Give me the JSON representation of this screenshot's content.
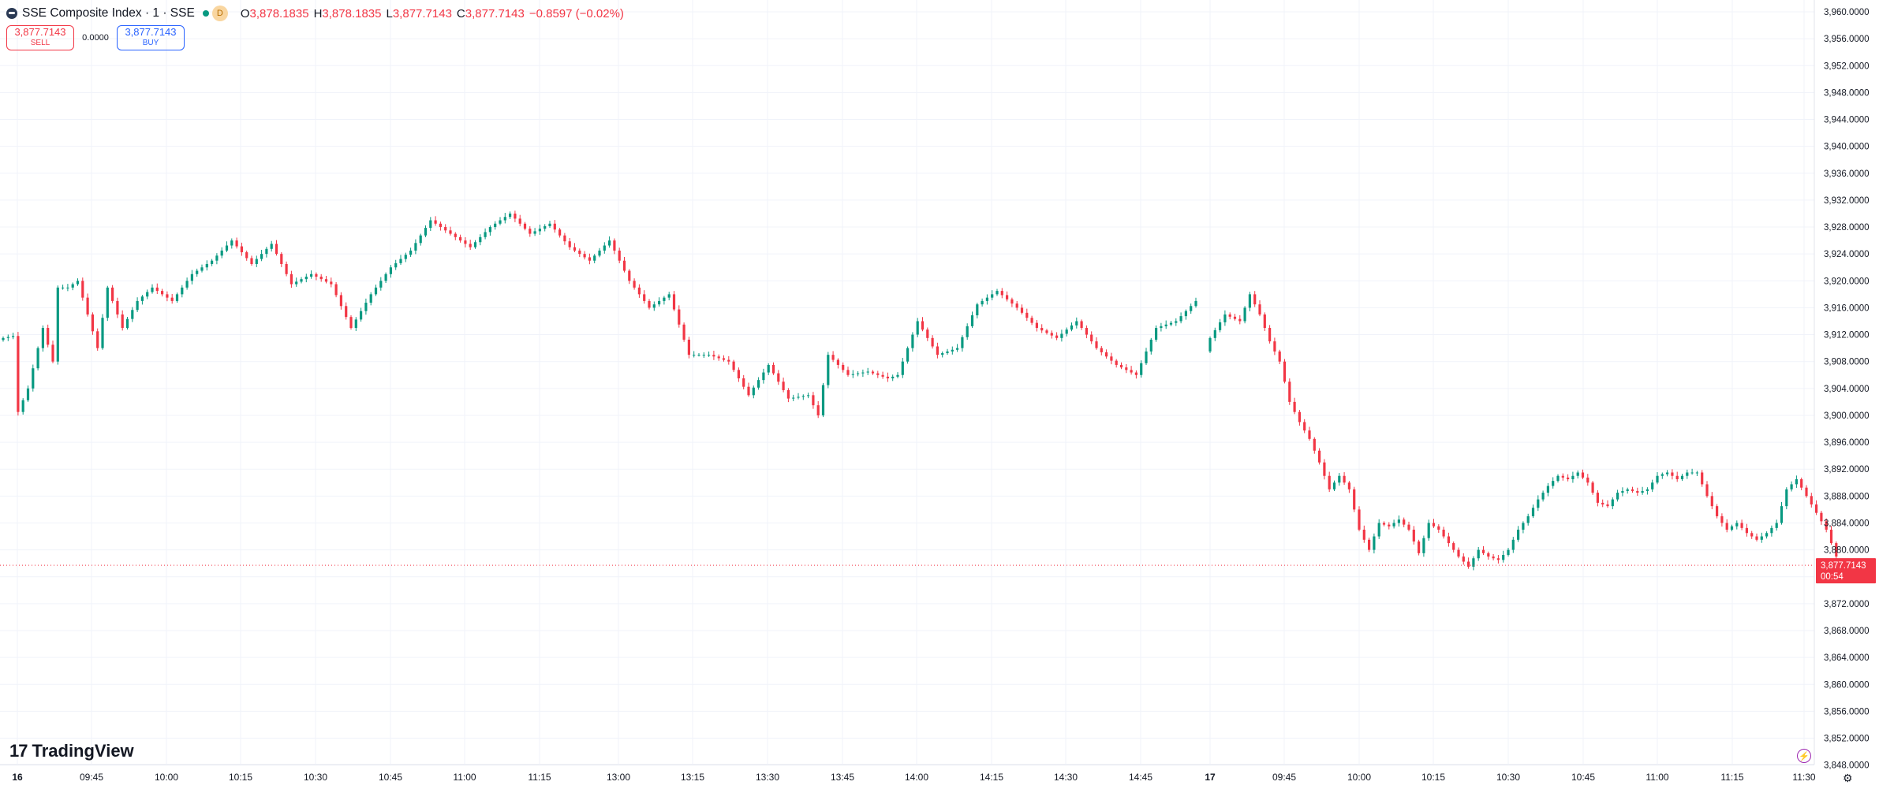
{
  "header": {
    "title": "SSE Composite Index · 1 · SSE",
    "badge": "D",
    "ohlc": [
      {
        "label": "O",
        "value": "3,878.1835"
      },
      {
        "label": "H",
        "value": "3,878.1835"
      },
      {
        "label": "L",
        "value": "3,877.7143"
      },
      {
        "label": "C",
        "value": "3,877.7143"
      }
    ],
    "change": "−0.8597 (−0.02%)"
  },
  "trade": {
    "sell_price": "3,877.7143",
    "sell_label": "SELL",
    "spread": "0.0000",
    "buy_price": "3,877.7143",
    "buy_label": "BUY"
  },
  "price_tag": {
    "value": "3,877.7143",
    "countdown": "00:54"
  },
  "branding": {
    "logo_text": "TradingView",
    "logo_mark": "17"
  },
  "icons": {
    "bolt": "lightning-icon",
    "settings": "gear-icon"
  },
  "colors": {
    "up": "#089981",
    "down": "#f23645",
    "grid": "#f0f3fa",
    "text": "#131722"
  },
  "chart_data": {
    "type": "candlestick",
    "title": "SSE Composite Index · 1 · SSE",
    "ylim": [
      3846,
      3961
    ],
    "y_ticks": [
      "3,960.0000",
      "3,956.0000",
      "3,952.0000",
      "3,948.0000",
      "3,944.0000",
      "3,940.0000",
      "3,936.0000",
      "3,932.0000",
      "3,928.0000",
      "3,924.0000",
      "3,920.0000",
      "3,916.0000",
      "3,912.0000",
      "3,908.0000",
      "3,904.0000",
      "3,900.0000",
      "3,896.0000",
      "3,892.0000",
      "3,888.0000",
      "3,884.0000",
      "3,880.0000",
      "3,876.0000",
      "3,872.0000",
      "3,868.0000",
      "3,864.0000",
      "3,860.0000",
      "3,856.0000",
      "3,852.0000",
      "3,848.0000"
    ],
    "x_ticks": [
      "16",
      "09:45",
      "10:00",
      "10:15",
      "10:30",
      "10:45",
      "11:00",
      "11:15",
      "13:00",
      "13:15",
      "13:30",
      "13:45",
      "14:00",
      "14:15",
      "14:30",
      "14:45",
      "17",
      "09:45",
      "10:00",
      "10:15",
      "10:30",
      "10:45",
      "11:00",
      "11:15",
      "11:30"
    ],
    "anchors_day1": [
      [
        0,
        3911.5
      ],
      [
        2,
        3911.8
      ],
      [
        3,
        3900.5
      ],
      [
        5,
        3904
      ],
      [
        8,
        3913
      ],
      [
        10,
        3908
      ],
      [
        11,
        3919
      ],
      [
        13,
        3919
      ],
      [
        15,
        3920
      ],
      [
        17,
        3915
      ],
      [
        19,
        3910
      ],
      [
        21,
        3919
      ],
      [
        24,
        3913
      ],
      [
        27,
        3917
      ],
      [
        30,
        3919
      ],
      [
        34,
        3917
      ],
      [
        38,
        3921
      ],
      [
        42,
        3923
      ],
      [
        46,
        3926
      ],
      [
        50,
        3922.5
      ],
      [
        54,
        3925.5
      ],
      [
        58,
        3919.5
      ],
      [
        62,
        3921
      ],
      [
        66,
        3919.5
      ],
      [
        70,
        3913
      ],
      [
        74,
        3918
      ],
      [
        78,
        3922
      ],
      [
        82,
        3924.5
      ],
      [
        86,
        3929
      ],
      [
        90,
        3927
      ],
      [
        94,
        3925
      ],
      [
        98,
        3928
      ],
      [
        102,
        3930
      ],
      [
        106,
        3927
      ],
      [
        110,
        3928.5
      ],
      [
        114,
        3925
      ],
      [
        118,
        3923
      ],
      [
        122,
        3926
      ],
      [
        126,
        3920
      ],
      [
        130,
        3916
      ],
      [
        134,
        3918
      ],
      [
        138,
        3909
      ],
      [
        142,
        3909
      ],
      [
        146,
        3908
      ],
      [
        150,
        3903
      ],
      [
        154,
        3907.5
      ],
      [
        158,
        3902.5
      ],
      [
        162,
        3903
      ],
      [
        164,
        3900
      ],
      [
        166,
        3909
      ],
      [
        170,
        3906
      ],
      [
        174,
        3906.5
      ],
      [
        178,
        3905.5
      ],
      [
        180,
        3906
      ],
      [
        184,
        3914
      ],
      [
        188,
        3909
      ],
      [
        192,
        3910
      ],
      [
        196,
        3916.5
      ],
      [
        200,
        3918.5
      ],
      [
        204,
        3916
      ],
      [
        208,
        3913
      ],
      [
        212,
        3911.5
      ],
      [
        216,
        3914
      ],
      [
        220,
        3910
      ],
      [
        224,
        3907.5
      ],
      [
        228,
        3906
      ],
      [
        232,
        3913
      ],
      [
        236,
        3914
      ],
      [
        240,
        3917
      ]
    ],
    "anchors_day2": [
      [
        0,
        3911.5
      ],
      [
        3,
        3915
      ],
      [
        6,
        3914
      ],
      [
        8,
        3918
      ],
      [
        10,
        3915
      ],
      [
        12,
        3911
      ],
      [
        14,
        3908
      ],
      [
        16,
        3902
      ],
      [
        18,
        3899
      ],
      [
        20,
        3896.5
      ],
      [
        22,
        3893
      ],
      [
        24,
        3889
      ],
      [
        26,
        3891
      ],
      [
        28,
        3889
      ],
      [
        30,
        3883
      ],
      [
        32,
        3880
      ],
      [
        34,
        3884
      ],
      [
        36,
        3883.5
      ],
      [
        38,
        3884.5
      ],
      [
        40,
        3883
      ],
      [
        42,
        3879.5
      ],
      [
        44,
        3884
      ],
      [
        46,
        3883
      ],
      [
        48,
        3881
      ],
      [
        50,
        3879
      ],
      [
        52,
        3877.5
      ],
      [
        54,
        3880
      ],
      [
        56,
        3879
      ],
      [
        58,
        3878.5
      ],
      [
        60,
        3880
      ],
      [
        62,
        3883
      ],
      [
        64,
        3885
      ],
      [
        66,
        3887.5
      ],
      [
        68,
        3889.5
      ],
      [
        70,
        3891
      ],
      [
        72,
        3890.5
      ],
      [
        74,
        3891.5
      ],
      [
        76,
        3890
      ],
      [
        78,
        3887
      ],
      [
        80,
        3886.5
      ],
      [
        82,
        3888.5
      ],
      [
        84,
        3889
      ],
      [
        86,
        3888.5
      ],
      [
        88,
        3889
      ],
      [
        90,
        3891
      ],
      [
        92,
        3891.5
      ],
      [
        94,
        3890.5
      ],
      [
        96,
        3891.5
      ],
      [
        98,
        3891.5
      ],
      [
        100,
        3888
      ],
      [
        102,
        3885
      ],
      [
        104,
        3883
      ],
      [
        106,
        3884
      ],
      [
        108,
        3882.5
      ],
      [
        110,
        3881.5
      ],
      [
        112,
        3882.5
      ],
      [
        114,
        3884
      ],
      [
        116,
        3889
      ],
      [
        118,
        3890.5
      ],
      [
        120,
        3888
      ],
      [
        122,
        3885.5
      ],
      [
        124,
        3883
      ],
      [
        126,
        3879
      ]
    ],
    "last_close": 3877.7143
  }
}
